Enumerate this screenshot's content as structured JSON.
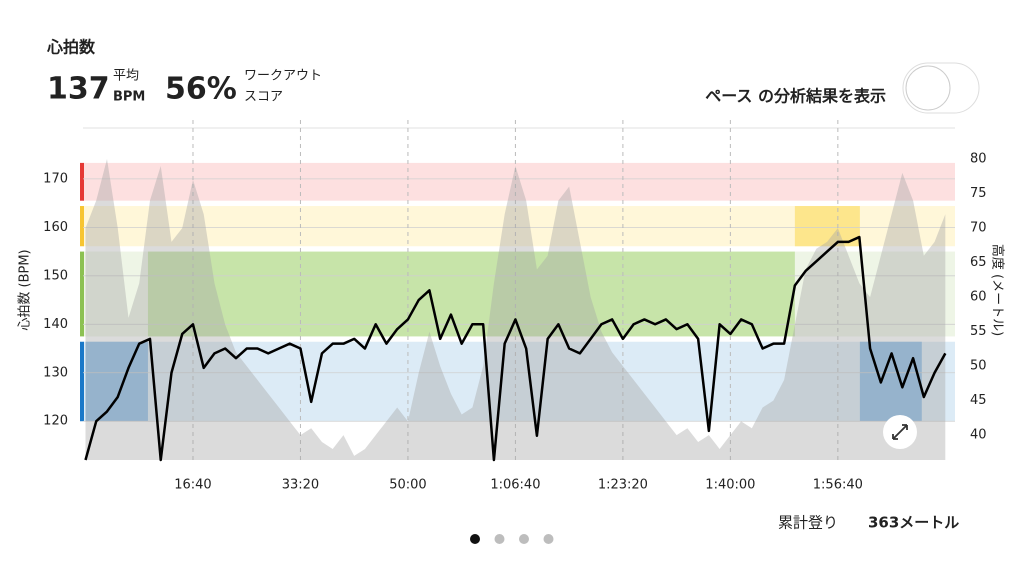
{
  "header": {
    "title": "心拍数",
    "avg_value": "137",
    "avg_label_top": "平均",
    "avg_label_bottom": "BPM",
    "score_value": "56%",
    "score_label_top": "ワークアウト",
    "score_label_bottom": "スコア"
  },
  "pace_toggle": {
    "label": "ペース の分析結果を表示",
    "on": false
  },
  "footer": {
    "climb_label": "累計登り",
    "climb_value": "363メートル"
  },
  "page_indicator": {
    "count": 4,
    "active": 0
  },
  "chart_data": {
    "type": "line",
    "ylabel": "心拍数 (BPM)",
    "y2label": "高度 (メートル)",
    "x": [
      0,
      100,
      200,
      300,
      400,
      500,
      600,
      700,
      800,
      900,
      1000,
      1100,
      1200,
      1300,
      1400,
      1500,
      1600,
      1700,
      1800,
      1900,
      2000,
      2100,
      2200,
      2300,
      2400,
      2500,
      2600,
      2700,
      2800,
      2900,
      3000,
      3100,
      3200,
      3300,
      3400,
      3500,
      3600,
      3700,
      3800,
      3900,
      4000,
      4100,
      4200,
      4300,
      4400,
      4500,
      4600,
      4700,
      4800,
      4900,
      5000,
      5100,
      5200,
      5300,
      5400,
      5500,
      5600,
      5700,
      5800,
      5900,
      6000,
      6100,
      6200,
      6300,
      6400,
      6500,
      6600,
      6700,
      6800,
      6900,
      7000,
      7100,
      7200,
      7300,
      7400,
      7500,
      7600,
      7700,
      7800,
      7900,
      8000
    ],
    "xlim": [
      0,
      8090
    ],
    "xticks": [
      {
        "value": 1000,
        "label": "16:40"
      },
      {
        "value": 2000,
        "label": "33:20"
      },
      {
        "value": 3000,
        "label": "50:00"
      },
      {
        "value": 4000,
        "label": "1:06:40"
      },
      {
        "value": 5000,
        "label": "1:23:20"
      },
      {
        "value": 6000,
        "label": "1:40:00"
      },
      {
        "value": 7000,
        "label": "1:56:40"
      }
    ],
    "ylim": [
      112,
      180.5
    ],
    "yticks": [
      120,
      130,
      140,
      150,
      160,
      170
    ],
    "y2lim": [
      36.4,
      84.5
    ],
    "y2ticks": [
      40,
      45,
      50,
      55,
      60,
      65,
      70,
      75,
      80
    ],
    "grid": true,
    "zones": [
      {
        "from": 120,
        "to": 136.4,
        "light": "#dcebf6",
        "dark": "#8dbde6",
        "marker": "#1a78c8"
      },
      {
        "from": 137.5,
        "to": 155,
        "light": "#eef5e6",
        "dark": "#c7e4a9",
        "marker": "#8cc152"
      },
      {
        "from": 156.1,
        "to": 164.4,
        "light": "#fff7d9",
        "dark": "#fde68c",
        "marker": "#f7c531"
      },
      {
        "from": 165.5,
        "to": 173.3,
        "light": "#fde0e0",
        "dark": "#fbc4c4",
        "marker": "#e53935"
      }
    ],
    "highlights": [
      {
        "zone": 0,
        "start": 0,
        "end": 581
      },
      {
        "zone": 1,
        "start": 581,
        "end": 6600
      },
      {
        "zone": 2,
        "start": 6600,
        "end": 7205
      },
      {
        "zone": 0,
        "start": 7205,
        "end": 7781
      }
    ],
    "series": [
      {
        "color": "#000000",
        "values": [
          112,
          120,
          122,
          125,
          131,
          136,
          137,
          112,
          130,
          138,
          140,
          131,
          134,
          135,
          133,
          135,
          135,
          134,
          135,
          136,
          135,
          124,
          134,
          136,
          136,
          137,
          135,
          140,
          136,
          139,
          141,
          145,
          147,
          137,
          142,
          136,
          140,
          140,
          112,
          136,
          141,
          135,
          117,
          137,
          140,
          135,
          134,
          137,
          140,
          141,
          137,
          140,
          141,
          140,
          141,
          139,
          140,
          137,
          118,
          140,
          138,
          141,
          140,
          135,
          136,
          136,
          148,
          151,
          153,
          155,
          157,
          157,
          158,
          135,
          128,
          134,
          127,
          133,
          125,
          130,
          134
        ]
      },
      {
        "axis": "y2",
        "color": "#a6a6a6",
        "values": [
          70,
          74,
          80,
          70,
          57,
          62,
          74,
          79,
          68,
          70,
          77,
          72,
          62,
          56,
          52,
          50,
          48,
          46,
          44,
          42,
          40,
          41,
          39,
          38,
          40,
          37,
          38,
          40,
          42,
          44,
          42,
          49,
          55,
          50,
          46,
          43,
          44,
          50,
          62,
          72,
          79,
          74,
          64,
          66,
          74,
          76,
          68,
          60,
          55,
          52,
          50,
          48,
          46,
          44,
          42,
          40,
          41,
          39,
          40,
          38,
          40,
          42,
          41,
          44,
          45,
          48,
          56,
          64,
          67,
          68,
          70,
          66,
          62,
          60,
          66,
          72,
          78,
          74,
          66,
          68,
          72
        ]
      }
    ]
  }
}
